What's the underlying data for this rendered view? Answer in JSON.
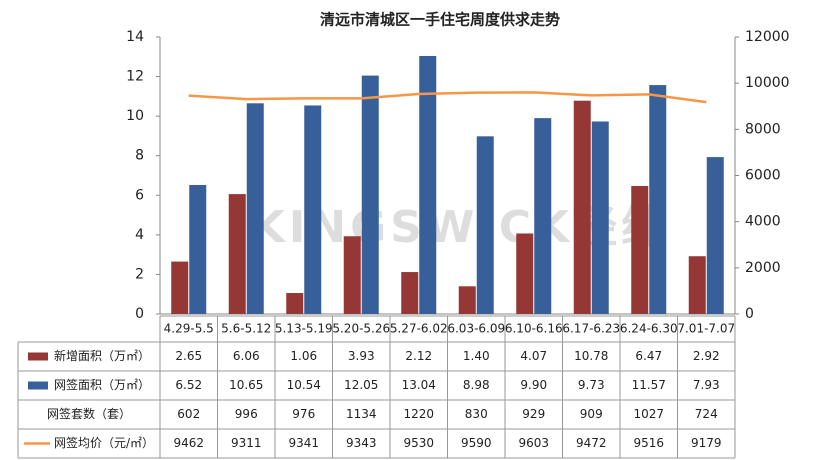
{
  "chart_data": {
    "type": "bar",
    "title": "清远市清城区一手住宅周度供求走势",
    "watermark": "KINGSWICK经纬",
    "categories": [
      "4.29-5.5",
      "5.6-5.12",
      "5.13-5.19",
      "5.20-5.26",
      "5.27-6.02",
      "6.03-6.09",
      "6.10-6.16",
      "6.17-6.23",
      "6.24-6.30",
      "7.01-7.07"
    ],
    "series": [
      {
        "name": "新增面积（万㎡）",
        "color": "#953735",
        "kind": "bar",
        "values": [
          2.65,
          6.06,
          1.06,
          3.93,
          2.12,
          1.4,
          4.07,
          10.78,
          6.47,
          2.92
        ],
        "value_labels": [
          "2.65",
          "6.06",
          "1.06",
          "3.93",
          "2.12",
          "1.40",
          "4.07",
          "10.78",
          "6.47",
          "2.92"
        ]
      },
      {
        "name": "网签面积（万㎡）",
        "color": "#37609a",
        "kind": "bar",
        "values": [
          6.52,
          10.65,
          10.54,
          12.05,
          13.04,
          8.98,
          9.9,
          9.73,
          11.57,
          7.93
        ],
        "value_labels": [
          "6.52",
          "10.65",
          "10.54",
          "12.05",
          "13.04",
          "8.98",
          "9.90",
          "9.73",
          "11.57",
          "7.93"
        ]
      },
      {
        "name": "网签套数（套）",
        "kind": "table",
        "values": [
          602,
          996,
          976,
          1134,
          1220,
          830,
          929,
          909,
          1027,
          724
        ]
      },
      {
        "name": "网签均价（元/㎡）",
        "color": "#f79646",
        "kind": "line",
        "axis": "y2",
        "values": [
          9462,
          9311,
          9341,
          9343,
          9530,
          9590,
          9603,
          9472,
          9516,
          9179
        ]
      }
    ],
    "ylim": [
      0,
      14
    ],
    "yticks": [
      0,
      2,
      4,
      6,
      8,
      10,
      12,
      14
    ],
    "y2lim": [
      0,
      12000
    ],
    "y2ticks": [
      0,
      2000,
      4000,
      6000,
      8000,
      10000,
      12000
    ]
  }
}
